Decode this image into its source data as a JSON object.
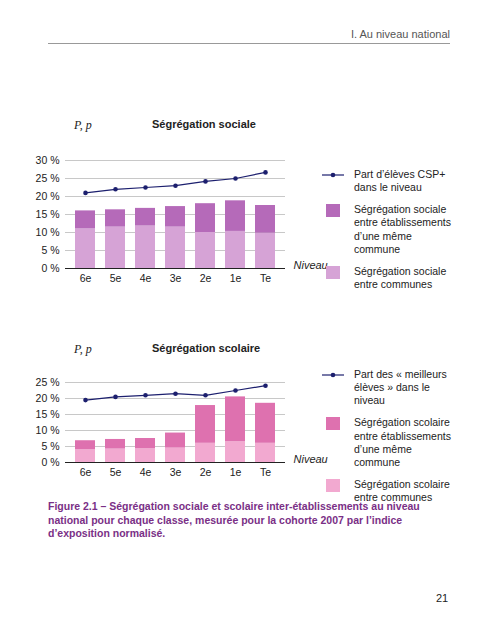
{
  "header": "I. Au niveau national",
  "chart_data": [
    {
      "type": "bar",
      "title": "Ségrégation sociale",
      "ylabel": "P, p",
      "xlabel": "Niveau",
      "categories": [
        "6e",
        "5e",
        "4e",
        "3e",
        "2e",
        "1e",
        "Te"
      ],
      "stacked": true,
      "grid": true,
      "legend": "right",
      "ylim": [
        0,
        30
      ],
      "yticks": [
        {
          "value": 0,
          "label": "0 %"
        },
        {
          "value": 5,
          "label": "5 %"
        },
        {
          "value": 10,
          "label": "10 %"
        },
        {
          "value": 15,
          "label": "15 %"
        },
        {
          "value": 20,
          "label": "20 %"
        },
        {
          "value": 25,
          "label": "25 %"
        },
        {
          "value": 30,
          "label": "30 %"
        }
      ],
      "series": [
        {
          "name": "Ségrégation sociale entre communes",
          "type": "bar",
          "color": "#d6a3d6",
          "values": [
            11,
            11.5,
            11.8,
            11.5,
            10,
            10.3,
            9.8
          ]
        },
        {
          "name": "Ségrégation sociale entre établissements d’une même commune",
          "type": "bar",
          "color": "#b56ab9",
          "values": [
            5,
            4.8,
            4.9,
            5.7,
            8,
            8.5,
            7.7
          ]
        },
        {
          "name": "Part d’élèves CSP+ dans le niveau",
          "type": "line",
          "marker": "dot",
          "color": "#1c1f6e",
          "values": [
            21,
            22,
            22.5,
            23,
            24.2,
            25,
            26.7
          ]
        }
      ]
    },
    {
      "type": "bar",
      "title": "Ségrégation scolaire",
      "ylabel": "P, p",
      "xlabel": "Niveau",
      "categories": [
        "6e",
        "5e",
        "4e",
        "3e",
        "2e",
        "1e",
        "Te"
      ],
      "stacked": true,
      "grid": true,
      "legend": "right",
      "ylim": [
        0,
        25
      ],
      "yticks": [
        {
          "value": 0,
          "label": "0 %"
        },
        {
          "value": 5,
          "label": "5 %"
        },
        {
          "value": 10,
          "label": "10 %"
        },
        {
          "value": 15,
          "label": "15 %"
        },
        {
          "value": 20,
          "label": "20 %"
        },
        {
          "value": 25,
          "label": "25 %"
        }
      ],
      "series": [
        {
          "name": "Ségrégation scolaire entre communes",
          "type": "bar",
          "color": "#f2a9d0",
          "values": [
            4,
            4.2,
            4.3,
            4.5,
            6,
            6.5,
            6
          ]
        },
        {
          "name": "Ségrégation scolaire entre établissements d’une même commune",
          "type": "bar",
          "color": "#de71af",
          "values": [
            2.8,
            3,
            3.2,
            4.7,
            11.8,
            14,
            12.5
          ]
        },
        {
          "name": "Part des « meilleurs élèves » dans le niveau",
          "type": "line",
          "marker": "dot",
          "color": "#1c1f6e",
          "values": [
            19.5,
            20.5,
            21,
            21.5,
            21,
            22.5,
            24
          ]
        }
      ]
    }
  ],
  "caption": "Figure 2.1 – Ségrégation sociale et scolaire inter-établissements au niveau national pour chaque classe, mesurée pour la cohorte 2007 par l’indice d’exposition normalisé.",
  "page_number": "21"
}
